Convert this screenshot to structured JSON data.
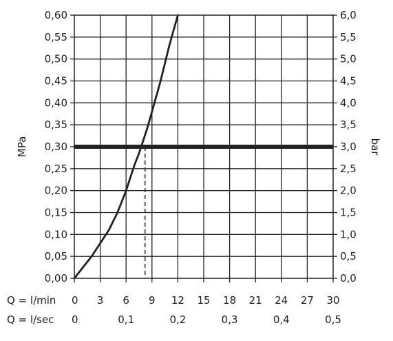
{
  "chart_data": {
    "type": "line",
    "title": "",
    "ylabel_left": "MPa",
    "ylabel_right": "bar",
    "x_scale_rows": [
      {
        "label": "Q = l/min",
        "ticks": [
          "0",
          "3",
          "6",
          "9",
          "12",
          "15",
          "18",
          "21",
          "24",
          "27",
          "30"
        ]
      },
      {
        "label": "Q = l/sec",
        "ticks": [
          "0",
          "0,1",
          "0,2",
          "0,3",
          "0,4",
          "0,5"
        ]
      }
    ],
    "xlim": [
      0,
      30
    ],
    "ylim": [
      0,
      0.6
    ],
    "y_ticks_left": [
      "0,00",
      "0,05",
      "0,10",
      "0,15",
      "0,20",
      "0,25",
      "0,30",
      "0,35",
      "0,40",
      "0,45",
      "0,50",
      "0,55",
      "0,60"
    ],
    "y_ticks_right": [
      "0,0",
      "0,5",
      "1,0",
      "1,5",
      "2,0",
      "2,5",
      "3,0",
      "3,5",
      "4,0",
      "4,5",
      "5,0",
      "5,5",
      "6,0"
    ],
    "grid": true,
    "series": [
      {
        "x": [
          0,
          1,
          2,
          3,
          4,
          5,
          6,
          7,
          7.5,
          8,
          8.5,
          9,
          9.5,
          10,
          10.5,
          11,
          11.5,
          12
        ],
        "y": [
          0,
          0.025,
          0.05,
          0.08,
          0.11,
          0.15,
          0.2,
          0.26,
          0.285,
          0.315,
          0.345,
          0.38,
          0.415,
          0.45,
          0.49,
          0.53,
          0.565,
          0.6
        ]
      }
    ],
    "reference_line": {
      "y": 0.3
    },
    "marker": {
      "x": 8.2,
      "y": 0.3
    },
    "colors": {
      "line": "#222222",
      "grid": "#222222",
      "background": "#ffffff"
    }
  }
}
